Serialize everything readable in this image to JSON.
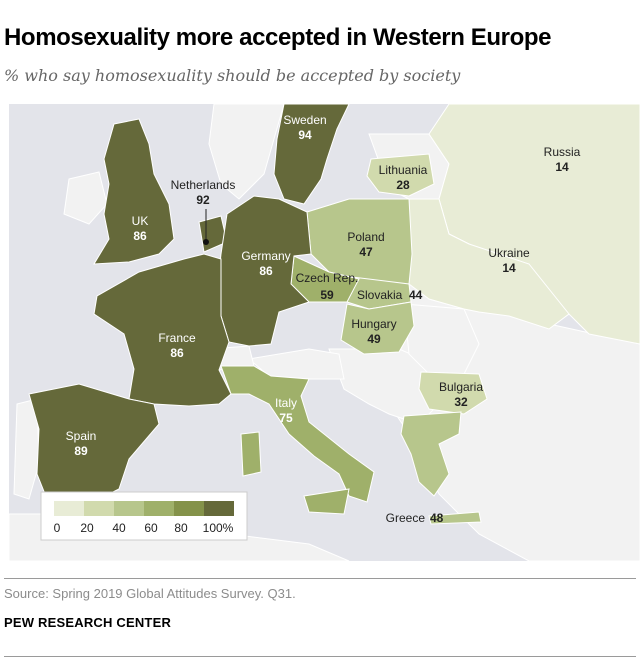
{
  "title": "Homosexuality more accepted in Western Europe",
  "subtitle": "% who say homosexuality should be accepted by society",
  "countries": [
    {
      "name": "Sweden",
      "value": "94"
    },
    {
      "name": "Netherlands",
      "value": "92"
    },
    {
      "name": "UK",
      "value": "86"
    },
    {
      "name": "Germany",
      "value": "86"
    },
    {
      "name": "France",
      "value": "86"
    },
    {
      "name": "Spain",
      "value": "89"
    },
    {
      "name": "Italy",
      "value": "75"
    },
    {
      "name": "Czech Rep.",
      "value": "59"
    },
    {
      "name": "Hungary",
      "value": "49"
    },
    {
      "name": "Poland",
      "value": "47"
    },
    {
      "name": "Slovakia",
      "value": "44"
    },
    {
      "name": "Lithuania",
      "value": "28"
    },
    {
      "name": "Bulgaria",
      "value": "32"
    },
    {
      "name": "Greece",
      "value": "48"
    },
    {
      "name": "Russia",
      "value": "14"
    },
    {
      "name": "Ukraine",
      "value": "14"
    }
  ],
  "legend": {
    "ticks": [
      "0",
      "20",
      "40",
      "60",
      "80",
      "100%"
    ],
    "colors": [
      "#e8ecd6",
      "#d1daad",
      "#b7c68c",
      "#9fb06a",
      "#84924a",
      "#65693a"
    ]
  },
  "colors": {
    "sea": "#e3e4ea",
    "land_no_data": "#f2f2f2",
    "border": "#ffffff"
  },
  "source": "Source: Spring 2019 Global Attitudes Survey. Q31.",
  "brand": "PEW RESEARCH CENTER"
}
